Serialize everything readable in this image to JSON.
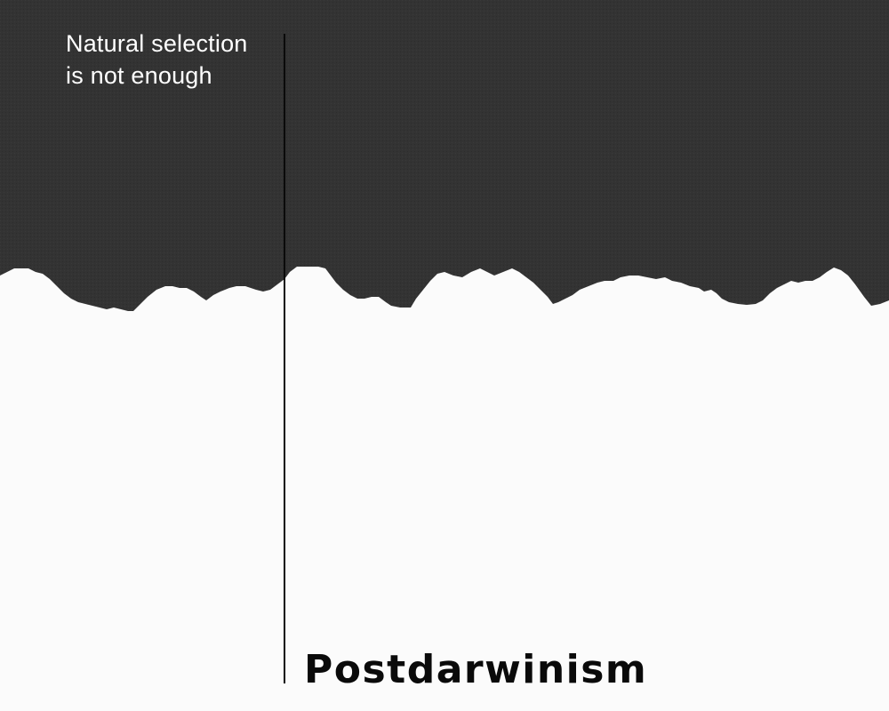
{
  "colors": {
    "dark_background": "#333333",
    "light_background": "#fbfbfb",
    "line": "#0a0a0a",
    "subtitle_text": "#ffffff",
    "title_text": "#0a0a0a"
  },
  "subtitle": {
    "line1": "Natural selection",
    "line2": "is not enough"
  },
  "title": "Postdarwinism"
}
